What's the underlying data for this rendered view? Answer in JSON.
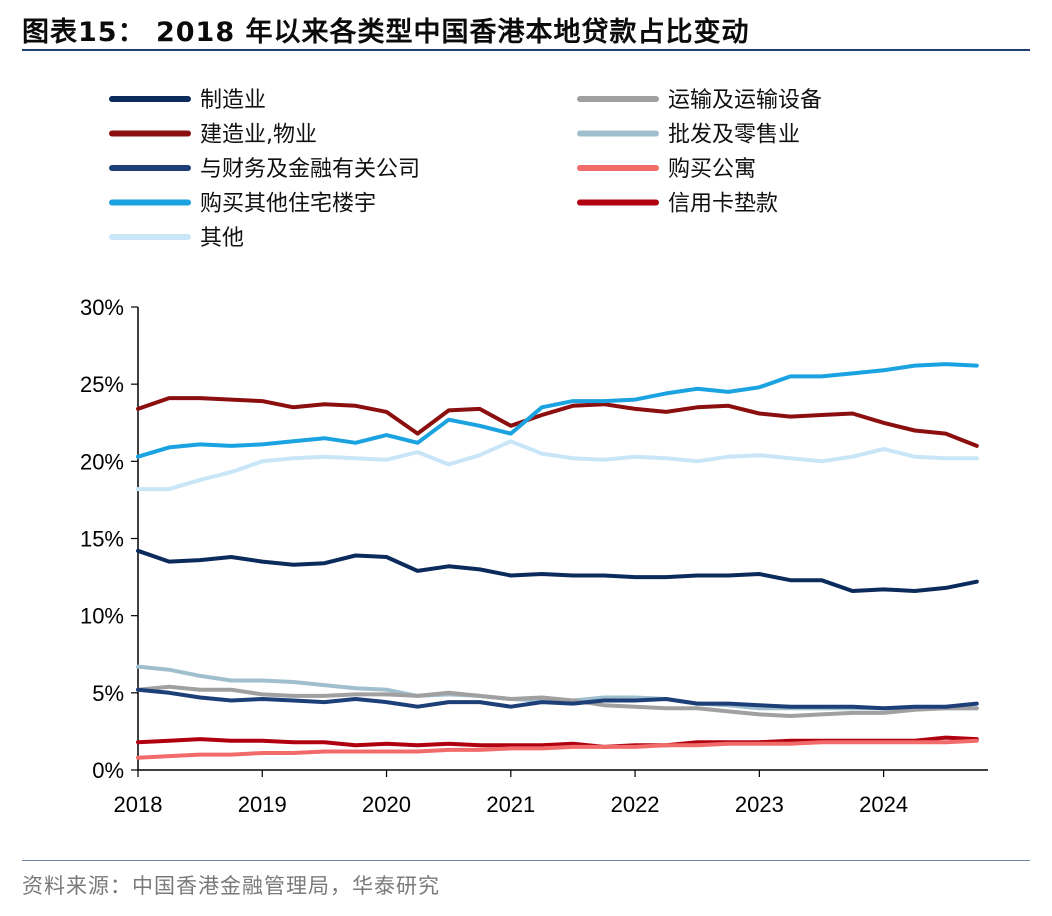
{
  "header": {
    "title": "图表15： 2018 年以来各类型中国香港本地贷款占比变动"
  },
  "footer": {
    "source": "资料来源：中国香港金融管理局，华泰研究"
  },
  "chart_data": {
    "type": "line",
    "title": "2018 年以来各类型中国香港本地贷款占比变动",
    "xlabel": "",
    "ylabel": "",
    "ylim": [
      0,
      30
    ],
    "yticks": [
      "0%",
      "5%",
      "10%",
      "15%",
      "20%",
      "25%",
      "30%"
    ],
    "yticks_values": [
      0,
      5,
      10,
      15,
      20,
      25,
      30
    ],
    "xticks": [
      "2018",
      "2019",
      "2020",
      "2021",
      "2022",
      "2023",
      "2024"
    ],
    "xticks_values": [
      2018,
      2019,
      2020,
      2021,
      2022,
      2023,
      2024
    ],
    "xlim": [
      2018,
      2024.84
    ],
    "x": [
      2018,
      2018.25,
      2018.5,
      2018.75,
      2019,
      2019.25,
      2019.5,
      2019.75,
      2020,
      2020.25,
      2020.5,
      2020.75,
      2021,
      2021.25,
      2021.5,
      2021.75,
      2022,
      2022.25,
      2022.5,
      2022.75,
      2023,
      2023.25,
      2023.5,
      2023.75,
      2024,
      2024.25,
      2024.5,
      2024.75
    ],
    "legend_position": "top",
    "series": [
      {
        "name": "制造业",
        "color": "#0b2b5c",
        "values": [
          14.2,
          13.5,
          13.6,
          13.8,
          13.5,
          13.3,
          13.4,
          13.9,
          13.8,
          12.9,
          13.2,
          13.0,
          12.6,
          12.7,
          12.6,
          12.6,
          12.5,
          12.5,
          12.6,
          12.6,
          12.7,
          12.3,
          12.3,
          11.6,
          11.7,
          11.6,
          11.8,
          12.2
        ]
      },
      {
        "name": "运输及运输设备",
        "color": "#a0a0a0",
        "values": [
          5.2,
          5.4,
          5.2,
          5.2,
          4.9,
          4.8,
          4.8,
          4.9,
          4.9,
          4.8,
          5.0,
          4.8,
          4.6,
          4.7,
          4.5,
          4.2,
          4.1,
          4.0,
          4.0,
          3.8,
          3.6,
          3.5,
          3.6,
          3.7,
          3.7,
          3.9,
          4.0,
          4.0
        ]
      },
      {
        "name": "建造业,物业",
        "color": "#8b0f0f",
        "values": [
          23.4,
          24.1,
          24.1,
          24.0,
          23.9,
          23.5,
          23.7,
          23.6,
          23.2,
          21.8,
          23.3,
          23.4,
          22.3,
          23.0,
          23.6,
          23.7,
          23.4,
          23.2,
          23.5,
          23.6,
          23.1,
          22.9,
          23.0,
          23.1,
          22.5,
          22.0,
          21.8,
          21.0
        ]
      },
      {
        "name": "批发及零售业",
        "color": "#9fbfce",
        "values": [
          6.7,
          6.5,
          6.1,
          5.8,
          5.8,
          5.7,
          5.5,
          5.3,
          5.2,
          4.8,
          4.9,
          4.8,
          4.6,
          4.5,
          4.5,
          4.7,
          4.7,
          4.6,
          4.3,
          4.2,
          4.0,
          4.0,
          4.0,
          4.0,
          4.0,
          4.0,
          4.0,
          4.0
        ]
      },
      {
        "name": "与财务及金融有关公司",
        "color": "#1d3f78",
        "values": [
          5.2,
          5.0,
          4.7,
          4.5,
          4.6,
          4.5,
          4.4,
          4.6,
          4.4,
          4.1,
          4.4,
          4.4,
          4.1,
          4.4,
          4.3,
          4.5,
          4.5,
          4.6,
          4.3,
          4.3,
          4.2,
          4.1,
          4.1,
          4.1,
          4.0,
          4.1,
          4.1,
          4.3
        ]
      },
      {
        "name": "购买公寓",
        "color": "#f26b6b",
        "values": [
          0.8,
          0.9,
          1.0,
          1.0,
          1.1,
          1.1,
          1.2,
          1.2,
          1.2,
          1.2,
          1.3,
          1.3,
          1.4,
          1.4,
          1.5,
          1.5,
          1.5,
          1.6,
          1.6,
          1.7,
          1.7,
          1.7,
          1.8,
          1.8,
          1.8,
          1.8,
          1.8,
          1.9
        ]
      },
      {
        "name": "购买其他住宅楼宇",
        "color": "#1aa3e0",
        "values": [
          20.3,
          20.9,
          21.1,
          21.0,
          21.1,
          21.3,
          21.5,
          21.2,
          21.7,
          21.2,
          22.7,
          22.3,
          21.8,
          23.5,
          23.9,
          23.9,
          24.0,
          24.4,
          24.7,
          24.5,
          24.8,
          25.5,
          25.5,
          25.7,
          25.9,
          26.2,
          26.3,
          26.2
        ]
      },
      {
        "name": "信用卡垫款",
        "color": "#b00010",
        "values": [
          1.8,
          1.9,
          2.0,
          1.9,
          1.9,
          1.8,
          1.8,
          1.6,
          1.7,
          1.6,
          1.7,
          1.6,
          1.6,
          1.6,
          1.7,
          1.5,
          1.6,
          1.6,
          1.8,
          1.8,
          1.8,
          1.9,
          1.9,
          1.9,
          1.9,
          1.9,
          2.1,
          2.0
        ]
      },
      {
        "name": "其他",
        "color": "#c8e6f7",
        "values": [
          18.2,
          18.2,
          18.8,
          19.3,
          20.0,
          20.2,
          20.3,
          20.2,
          20.1,
          20.6,
          19.8,
          20.4,
          21.3,
          20.5,
          20.2,
          20.1,
          20.3,
          20.2,
          20.0,
          20.3,
          20.4,
          20.2,
          20.0,
          20.3,
          20.8,
          20.3,
          20.2,
          20.2
        ]
      }
    ]
  }
}
